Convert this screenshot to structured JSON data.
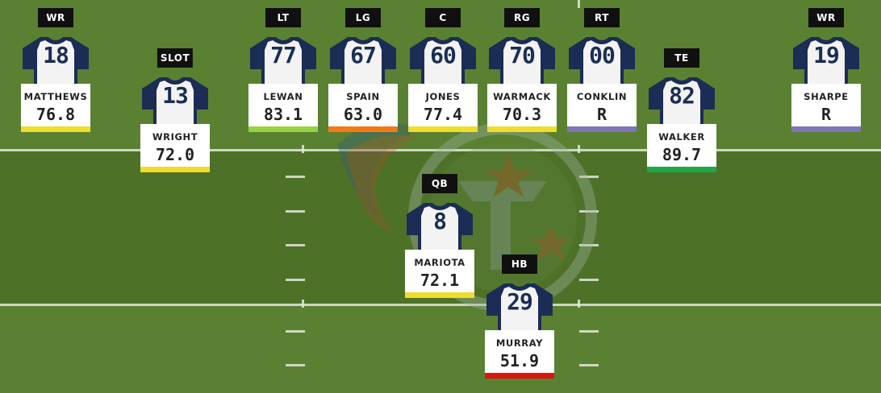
{
  "colors": {
    "field_dark": "#4e7128",
    "field_light": "#5a8132",
    "jersey_white": "#f3f3f3",
    "jersey_navy": "#1b2d55",
    "grade_yellow": "#f1dc2a",
    "grade_lime": "#94d33f",
    "grade_orange": "#f27a14",
    "grade_green": "#1fa84a",
    "grade_red": "#e0140f",
    "grade_purple": "#7e75b8"
  },
  "icons": {
    "jersey": "jersey-icon",
    "logo": "titans-logo-icon"
  },
  "players": [
    {
      "id": "wr-left",
      "position": "WR",
      "number": "18",
      "name": "MATTHEWS",
      "grade": "76.8",
      "bar_color": "#f1dc2a"
    },
    {
      "id": "slot",
      "position": "SLOT",
      "number": "13",
      "name": "WRIGHT",
      "grade": "72.0",
      "bar_color": "#f1dc2a"
    },
    {
      "id": "lt",
      "position": "LT",
      "number": "77",
      "name": "LEWAN",
      "grade": "83.1",
      "bar_color": "#94d33f"
    },
    {
      "id": "lg",
      "position": "LG",
      "number": "67",
      "name": "SPAIN",
      "grade": "63.0",
      "bar_color": "#f27a14"
    },
    {
      "id": "c",
      "position": "C",
      "number": "60",
      "name": "JONES",
      "grade": "77.4",
      "bar_color": "#f1dc2a"
    },
    {
      "id": "rg",
      "position": "RG",
      "number": "70",
      "name": "WARMACK",
      "grade": "70.3",
      "bar_color": "#f1dc2a"
    },
    {
      "id": "rt",
      "position": "RT",
      "number": "00",
      "name": "CONKLIN",
      "grade": "R",
      "bar_color": "#7e75b8"
    },
    {
      "id": "te",
      "position": "TE",
      "number": "82",
      "name": "WALKER",
      "grade": "89.7",
      "bar_color": "#1fa84a"
    },
    {
      "id": "wr-right",
      "position": "WR",
      "number": "19",
      "name": "SHARPE",
      "grade": "R",
      "bar_color": "#7e75b8"
    },
    {
      "id": "qb",
      "position": "QB",
      "number": "8",
      "name": "MARIOTA",
      "grade": "72.1",
      "bar_color": "#f1dc2a"
    },
    {
      "id": "hb",
      "position": "HB",
      "number": "29",
      "name": "MURRAY",
      "grade": "51.9",
      "bar_color": "#e0140f"
    }
  ]
}
